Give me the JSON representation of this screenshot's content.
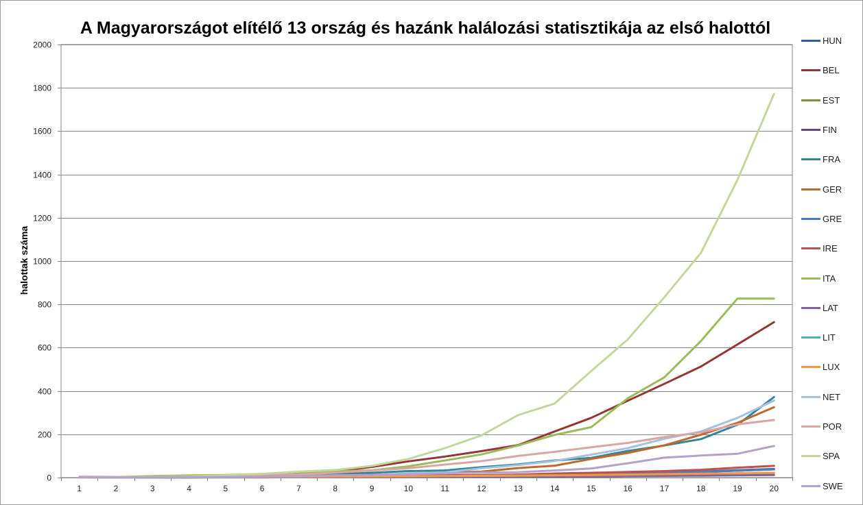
{
  "chart_data": {
    "type": "line",
    "title": "A Magyarországot elítélő 13 ország és hazánk halálozási statisztikája az első halottól",
    "xlabel": "",
    "ylabel": "halottak száma",
    "ylim": [
      0,
      2000
    ],
    "yticks": [
      0,
      200,
      400,
      600,
      800,
      1000,
      1200,
      1400,
      1600,
      1800,
      2000
    ],
    "x": [
      1,
      2,
      3,
      4,
      5,
      6,
      7,
      8,
      9,
      10,
      11,
      12,
      13,
      14,
      15,
      16,
      17,
      18,
      19,
      20
    ],
    "grid": "horizontal",
    "legend_position": "right",
    "series": [
      {
        "name": "HUN",
        "color": "#2e5e8f",
        "values": [
          1,
          1,
          1,
          2,
          2,
          3,
          4,
          5,
          6,
          7,
          8,
          9,
          10,
          11,
          13,
          16,
          20,
          26,
          32,
          38
        ]
      },
      {
        "name": "BEL",
        "color": "#943634",
        "values": [
          3,
          3,
          4,
          6,
          10,
          14,
          21,
          30,
          49,
          75,
          97,
          122,
          150,
          213,
          276,
          355,
          433,
          513,
          615,
          718
        ]
      },
      {
        "name": "EST",
        "color": "#77933c",
        "values": [
          1,
          1,
          1,
          1,
          2,
          2,
          3,
          3,
          4,
          5,
          6,
          7,
          8,
          9,
          10,
          12,
          14,
          16,
          19,
          21
        ]
      },
      {
        "name": "FIN",
        "color": "#604a7b",
        "values": [
          1,
          1,
          1,
          1,
          2,
          3,
          4,
          6,
          8,
          9,
          10,
          11,
          13,
          17,
          19,
          20,
          25,
          28,
          34,
          40
        ]
      },
      {
        "name": "FRA",
        "color": "#31859c",
        "values": [
          2,
          3,
          4,
          4,
          6,
          8,
          11,
          16,
          22,
          30,
          33,
          48,
          61,
          79,
          91,
          123,
          148,
          178,
          244,
          372
        ]
      },
      {
        "name": "GER",
        "color": "#c0682b",
        "values": [
          2,
          2,
          3,
          3,
          6,
          8,
          9,
          11,
          13,
          17,
          24,
          28,
          44,
          55,
          86,
          114,
          149,
          198,
          253,
          325
        ]
      },
      {
        "name": "GRE",
        "color": "#4a7ebb",
        "values": [
          1,
          1,
          1,
          2,
          3,
          4,
          4,
          5,
          6,
          7,
          9,
          10,
          13,
          17,
          20,
          22,
          26,
          28,
          32,
          38
        ]
      },
      {
        "name": "IRE",
        "color": "#c0504d",
        "values": [
          1,
          1,
          2,
          2,
          3,
          3,
          4,
          6,
          7,
          9,
          10,
          12,
          14,
          19,
          22,
          26,
          30,
          36,
          46,
          54
        ]
      },
      {
        "name": "ITA",
        "color": "#9bbb59",
        "values": [
          2,
          3,
          7,
          10,
          12,
          17,
          21,
          29,
          34,
          52,
          79,
          107,
          148,
          197,
          233,
          366,
          463,
          631,
          827,
          827
        ]
      },
      {
        "name": "LAT",
        "color": "#7f6499",
        "values": [
          1,
          1,
          1,
          1,
          1,
          1,
          2,
          2,
          3,
          3,
          4,
          4,
          5,
          5,
          6,
          7,
          8,
          9,
          10,
          12
        ]
      },
      {
        "name": "LIT",
        "color": "#4bacc6",
        "values": [
          1,
          1,
          1,
          2,
          2,
          3,
          4,
          5,
          6,
          7,
          8,
          9,
          10,
          11,
          12,
          14,
          16,
          18,
          20,
          22
        ]
      },
      {
        "name": "LUX",
        "color": "#f79646",
        "values": [
          1,
          1,
          2,
          2,
          3,
          3,
          4,
          4,
          5,
          6,
          7,
          8,
          9,
          10,
          12,
          14,
          16,
          18,
          20,
          22
        ]
      },
      {
        "name": "NET",
        "color": "#a7c0de",
        "values": [
          1,
          2,
          3,
          4,
          4,
          5,
          6,
          10,
          12,
          20,
          24,
          43,
          58,
          77,
          106,
          136,
          179,
          213,
          276,
          356
        ]
      },
      {
        "name": "POR",
        "color": "#d9a6a4",
        "values": [
          1,
          2,
          3,
          4,
          6,
          12,
          14,
          23,
          33,
          43,
          60,
          76,
          100,
          119,
          140,
          160,
          187,
          209,
          246,
          266
        ]
      },
      {
        "name": "SPA",
        "color": "#c3d69b",
        "values": [
          1,
          2,
          3,
          5,
          10,
          17,
          28,
          35,
          54,
          86,
          136,
          195,
          289,
          342,
          492,
          638,
          833,
          1038,
          1375,
          1772
        ]
      },
      {
        "name": "SWE",
        "color": "#b3a2c7",
        "values": [
          1,
          1,
          1,
          2,
          3,
          5,
          7,
          10,
          12,
          15,
          20,
          23,
          25,
          33,
          42,
          66,
          92,
          102,
          110,
          146
        ]
      }
    ]
  }
}
